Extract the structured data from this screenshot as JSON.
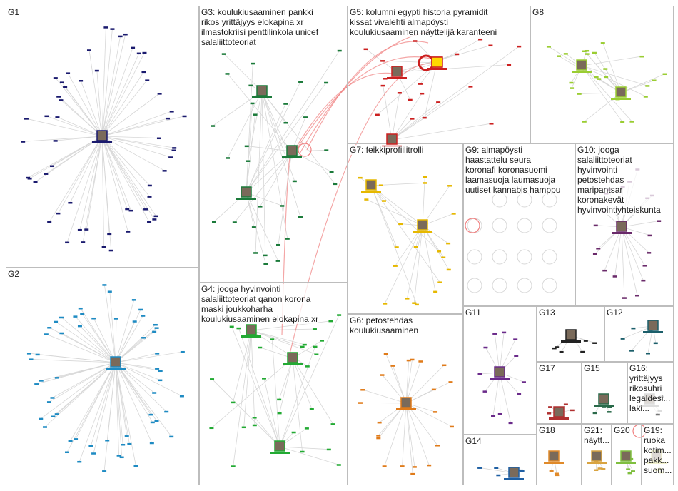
{
  "colors": {
    "border": "#bdbdbd",
    "edge": "#d7d7d7",
    "edge_highlight": "#f08080",
    "G1": "#1a1a6e",
    "G2": "#1e8bc3",
    "G3": "#1b7a3a",
    "G4": "#22aa33",
    "G5": "#cc1f1f",
    "G6": "#e07b1a",
    "G7": "#e6b800",
    "G8": "#9acd32",
    "G9": "#d6a0a0",
    "G10": "#6a2a6a",
    "G11": "#6a2a8a",
    "G12": "#1b5e6a",
    "G13": "#222222",
    "G14": "#1e5fa3",
    "G15": "#2a6a4a",
    "G16": "#777777",
    "G17": "#b03030",
    "G18": "#e08a2a",
    "G19": "#c7c73a",
    "G20": "#7fbf3f",
    "G21": "#d9a441"
  },
  "groups": [
    {
      "id": "G1",
      "label": "G1"
    },
    {
      "id": "G2",
      "label": "G2"
    },
    {
      "id": "G3",
      "label": "G3: koulukiusaaminen pankki\nrikos yrittäjyys elokapina xr\nilmastokriisi penttilinkola unicef\nsalaliittoteoriat"
    },
    {
      "id": "G4",
      "label": "G4: jooga hyvinvointi\nsalaliittoteoriat qanon korona\nmaski joukkoharha\nkoulukiusaaminen elokapina xr"
    },
    {
      "id": "G5",
      "label": "G5: kolumni egypti historia pyramidit\nkissat vivalehti almapöysti\nkoulukiusaaminen näyttelijä karanteeni"
    },
    {
      "id": "G6",
      "label": "G6: petostehdas\nkoulukiusaaminen"
    },
    {
      "id": "G7",
      "label": "G7: feikkiprofiilitrolli"
    },
    {
      "id": "G8",
      "label": "G8"
    },
    {
      "id": "G9",
      "label": "G9: almapöysti\nhaastattelu seura\nkoronafi koronasuomi\nlaamasuoja laumasuoja\nuutiset kannabis hamppu"
    },
    {
      "id": "G10",
      "label": "G10: jooga\nsalaliittoteoriat\nhyvinvointi\npetostehdas\nmaripantsar\nkoronakevät\nhyvinvointiyhteiskunta"
    },
    {
      "id": "G11",
      "label": "G11"
    },
    {
      "id": "G12",
      "label": "G12"
    },
    {
      "id": "G13",
      "label": "G13"
    },
    {
      "id": "G14",
      "label": "G14"
    },
    {
      "id": "G15",
      "label": "G15"
    },
    {
      "id": "G16",
      "label": "G16:\nyrittäjyys\nrikosuhri\nlegaldesi...\nlaki..."
    },
    {
      "id": "G17",
      "label": "G17"
    },
    {
      "id": "G18",
      "label": "G18"
    },
    {
      "id": "G19",
      "label": "G19:\nruoka\nkotim...\npakk...\nsuom..."
    },
    {
      "id": "G20",
      "label": "G20"
    },
    {
      "id": "G21",
      "label": "G21:\nnäytt..."
    }
  ]
}
